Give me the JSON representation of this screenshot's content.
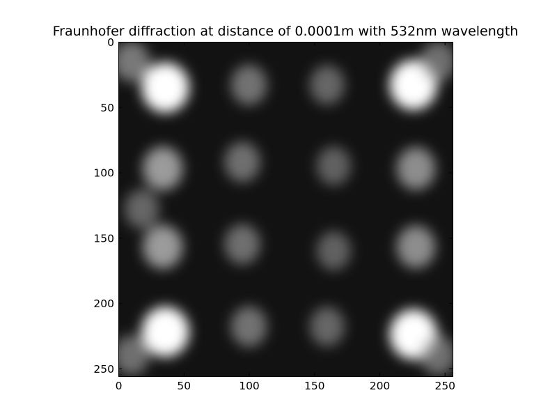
{
  "chart_data": {
    "type": "heatmap",
    "title": "Fraunhofer diffraction at distance of 0.0001m with 532nm wavelength",
    "xlabel": "",
    "ylabel": "",
    "xlim": [
      0,
      256
    ],
    "ylim": [
      256,
      0
    ],
    "x_ticks": [
      0,
      50,
      100,
      150,
      200,
      250
    ],
    "y_ticks": [
      0,
      50,
      100,
      150,
      200,
      250
    ],
    "x_tick_labels": [
      "0",
      "50",
      "100",
      "150",
      "200",
      "250"
    ],
    "y_tick_labels": [
      "0",
      "50",
      "100",
      "150",
      "200",
      "250"
    ],
    "colormap": "gray",
    "grid": false,
    "image_size": [
      256,
      256
    ],
    "bright_spots": [
      {
        "x": 36,
        "y": 35,
        "intensity": 1.0
      },
      {
        "x": 226,
        "y": 33,
        "intensity": 1.0
      },
      {
        "x": 36,
        "y": 222,
        "intensity": 1.0
      },
      {
        "x": 226,
        "y": 224,
        "intensity": 1.0
      },
      {
        "x": 34,
        "y": 97,
        "intensity": 0.62
      },
      {
        "x": 34,
        "y": 157,
        "intensity": 0.62
      },
      {
        "x": 228,
        "y": 97,
        "intensity": 0.55
      },
      {
        "x": 228,
        "y": 157,
        "intensity": 0.55
      },
      {
        "x": 100,
        "y": 33,
        "intensity": 0.42
      },
      {
        "x": 100,
        "y": 218,
        "intensity": 0.42
      },
      {
        "x": 95,
        "y": 92,
        "intensity": 0.4
      },
      {
        "x": 95,
        "y": 155,
        "intensity": 0.4
      },
      {
        "x": 160,
        "y": 33,
        "intensity": 0.35
      },
      {
        "x": 160,
        "y": 218,
        "intensity": 0.35
      },
      {
        "x": 165,
        "y": 95,
        "intensity": 0.32
      },
      {
        "x": 165,
        "y": 160,
        "intensity": 0.32
      },
      {
        "x": 10,
        "y": 15,
        "intensity": 0.45
      },
      {
        "x": 10,
        "y": 240,
        "intensity": 0.4
      },
      {
        "x": 18,
        "y": 128,
        "intensity": 0.35
      },
      {
        "x": 245,
        "y": 15,
        "intensity": 0.4
      },
      {
        "x": 245,
        "y": 240,
        "intensity": 0.4
      }
    ]
  }
}
